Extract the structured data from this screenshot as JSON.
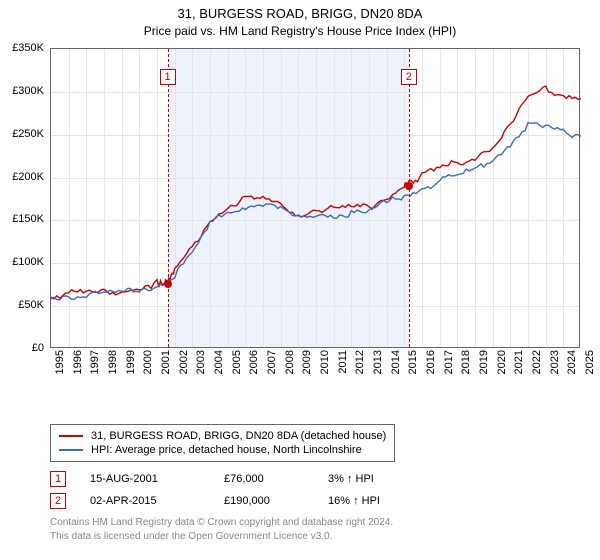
{
  "title": "31, BURGESS ROAD, BRIGG, DN20 8DA",
  "subtitle": "Price paid vs. HM Land Registry's House Price Index (HPI)",
  "chart": {
    "type": "line",
    "background_color": "#ffffff",
    "grid_color": "#e6e6e6",
    "border_color": "#666666",
    "shaded_region_color": "#eef3fb",
    "shaded_region": {
      "start_year": 2001.6,
      "end_year": 2015.25
    },
    "ylim": [
      0,
      350000
    ],
    "ytick_step": 50000,
    "ytick_prefix": "£",
    "ytick_suffix": "K",
    "ytick_divisor": 1000,
    "xlim": [
      1995,
      2025
    ],
    "xtick_step": 1,
    "label_fontsize": 11,
    "xtick_rotation": -90,
    "series": [
      {
        "name": "subject",
        "label": "31, BURGESS ROAD, BRIGG, DN20 8DA (detached house)",
        "color": "#cc0000",
        "line_width": 1.4,
        "x": [
          1995,
          1996,
          1997,
          1998,
          1999,
          2000,
          2001,
          2001.6,
          2002,
          2003,
          2004,
          2005,
          2006,
          2007,
          2008,
          2009,
          2010,
          2011,
          2012,
          2013,
          2014,
          2015,
          2015.25,
          2016,
          2017,
          2018,
          2019,
          2020,
          2021,
          2022,
          2023,
          2024,
          2025
        ],
        "y": [
          60000,
          62000,
          63000,
          64000,
          66000,
          70000,
          74000,
          76000,
          90000,
          115000,
          150000,
          165000,
          172000,
          173000,
          165000,
          155000,
          162000,
          160000,
          162000,
          163000,
          175000,
          188000,
          190000,
          200000,
          208000,
          215000,
          222000,
          235000,
          258000,
          290000,
          300000,
          295000,
          292000
        ]
      },
      {
        "name": "hpi",
        "label": "HPI: Average price, detached house, North Lincolnshire",
        "color": "#3a6fb7",
        "line_width": 1.4,
        "x": [
          1995,
          1996,
          1997,
          1998,
          1999,
          2000,
          2001,
          2002,
          2003,
          2004,
          2005,
          2006,
          2007,
          2008,
          2009,
          2010,
          2011,
          2012,
          2013,
          2014,
          2015,
          2016,
          2017,
          2018,
          2019,
          2020,
          2021,
          2022,
          2023,
          2024,
          2025
        ],
        "y": [
          58000,
          60000,
          61000,
          62000,
          64000,
          68000,
          72000,
          85000,
          108000,
          142000,
          158000,
          165000,
          168000,
          160000,
          150000,
          156000,
          154000,
          155000,
          157000,
          168000,
          178000,
          186000,
          193000,
          200000,
          207000,
          218000,
          238000,
          260000,
          255000,
          250000,
          248000
        ]
      }
    ],
    "markers": [
      {
        "id": "1",
        "x_year": 2001.6,
        "y_value": 76000,
        "box_top": 20
      },
      {
        "id": "2",
        "x_year": 2015.25,
        "y_value": 190000,
        "box_top": 20
      }
    ]
  },
  "legend": {
    "rows": [
      {
        "color": "#cc0000",
        "label": "31, BURGESS ROAD, BRIGG, DN20 8DA (detached house)"
      },
      {
        "color": "#3a6fb7",
        "label": "HPI: Average price, detached house, North Lincolnshire"
      }
    ]
  },
  "sales": [
    {
      "id": "1",
      "date": "15-AUG-2001",
      "price": "£76,000",
      "delta": "3% ↑ HPI"
    },
    {
      "id": "2",
      "date": "02-APR-2015",
      "price": "£190,000",
      "delta": "16% ↑ HPI"
    }
  ],
  "footnote_line1": "Contains HM Land Registry data © Crown copyright and database right 2024.",
  "footnote_line2": "This data is licensed under the Open Government Licence v3.0."
}
